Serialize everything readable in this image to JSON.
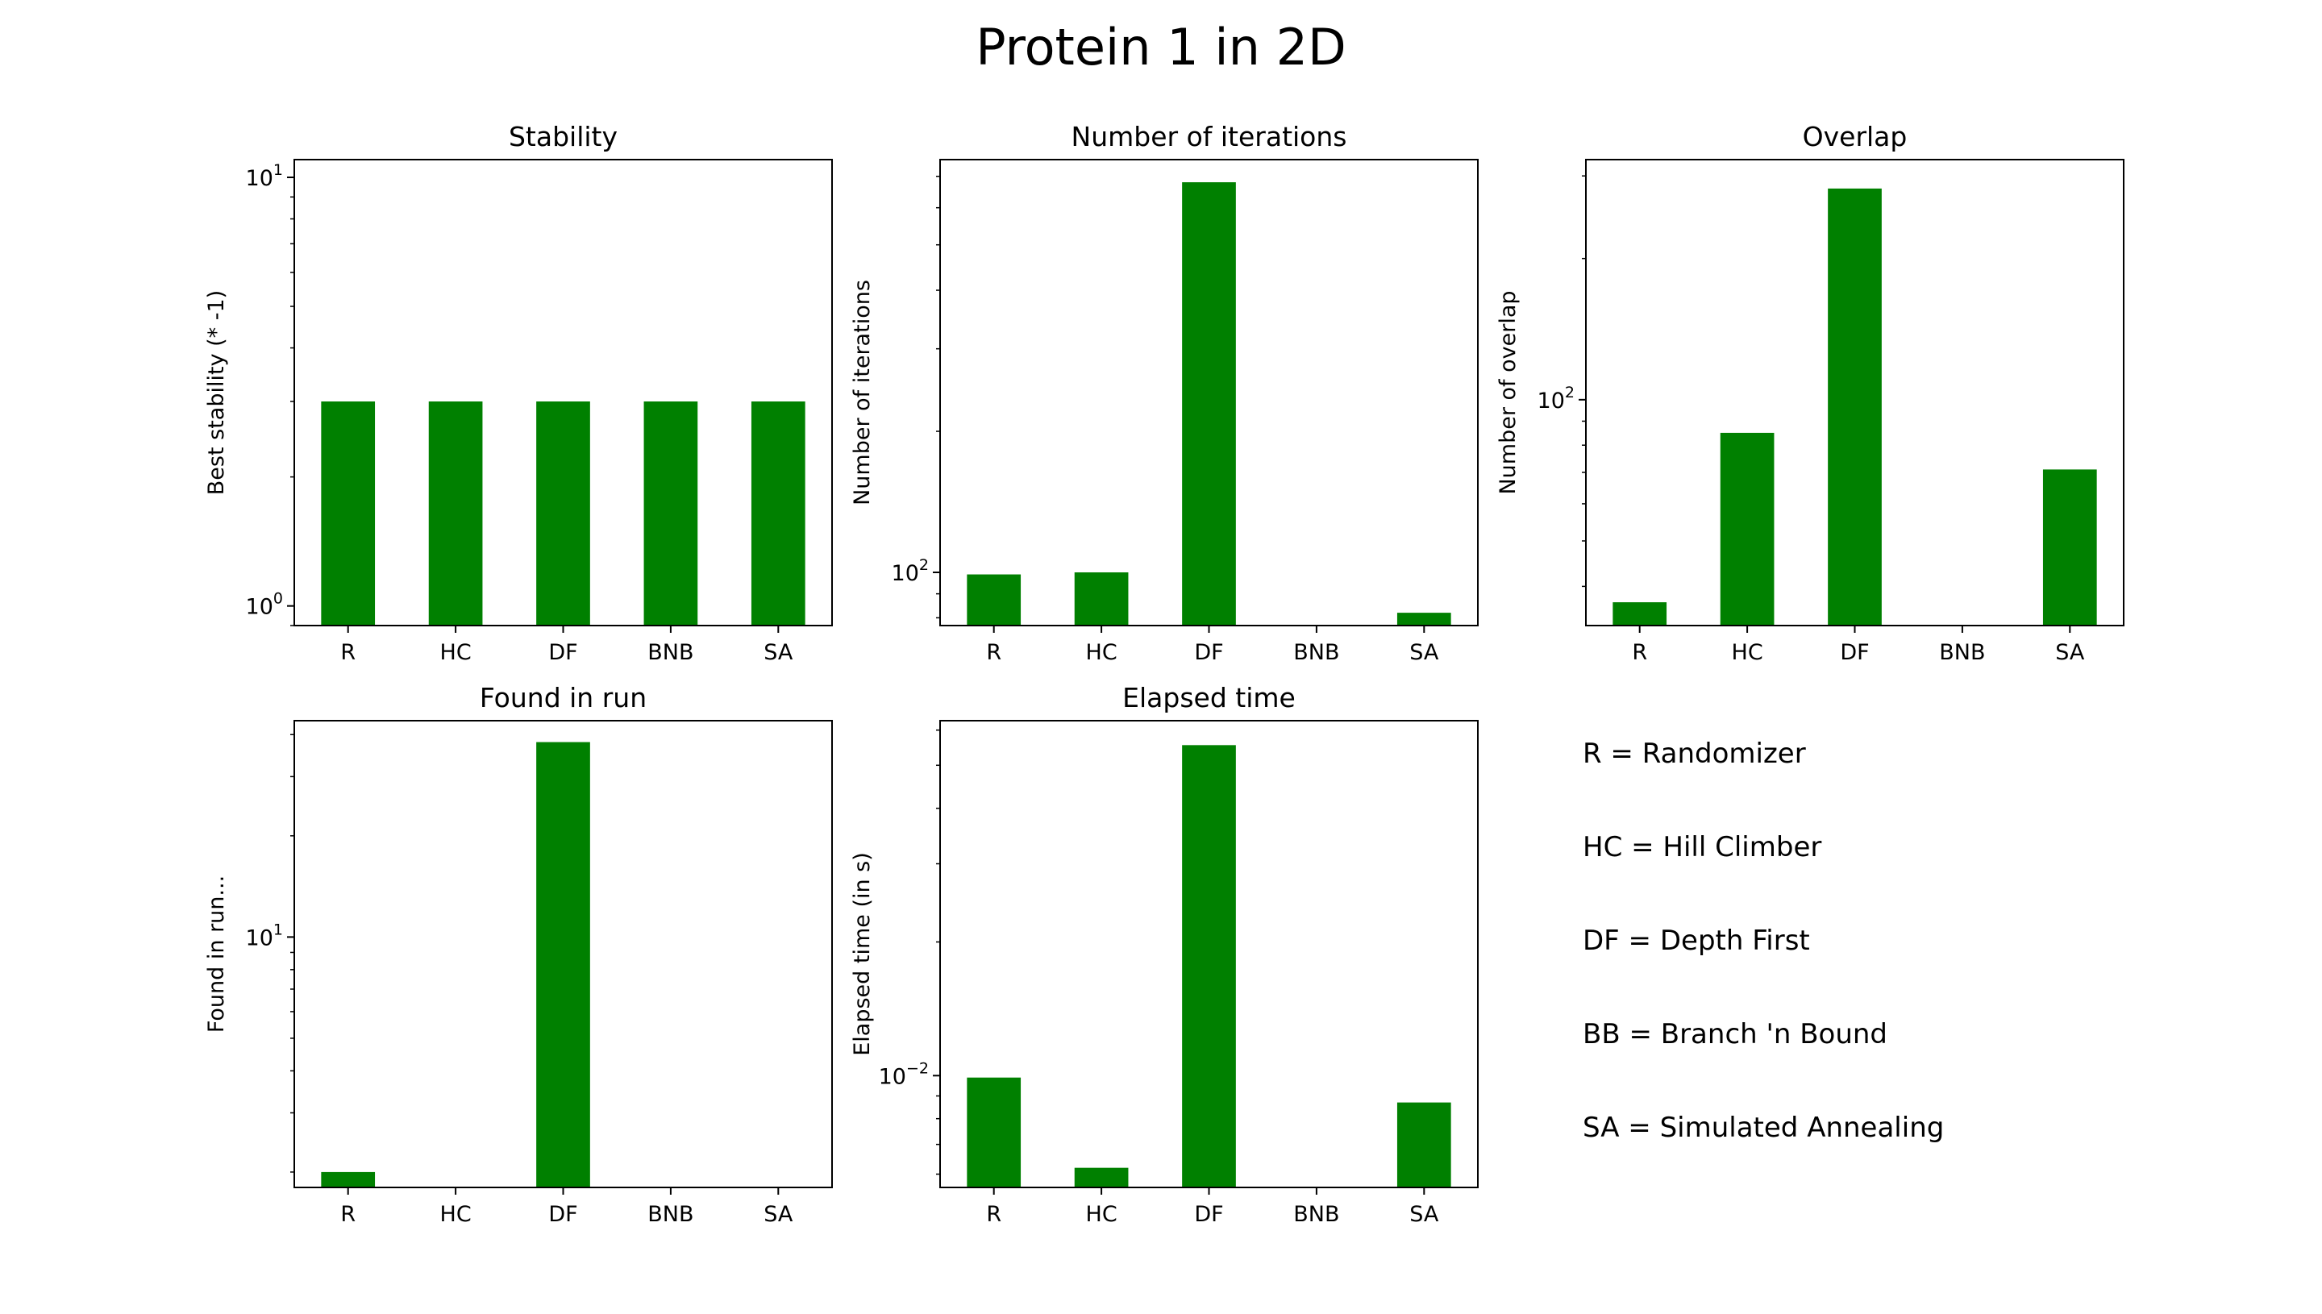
{
  "figure_title": "Protein 1 in 2D",
  "bar_color": "#008000",
  "legend": [
    "R = Randomizer",
    "HC = Hill Climber",
    "DF = Depth First",
    "BB = Branch 'n Bound",
    "SA = Simulated Annealing"
  ],
  "chart_data": [
    {
      "type": "bar",
      "title": "Stability",
      "ylabel": "Best stability (* -1)",
      "yscale": "log",
      "categories": [
        "R",
        "HC",
        "DF",
        "BNB",
        "SA"
      ],
      "values": [
        3,
        3,
        3,
        3,
        3
      ],
      "ylim": [
        0.9,
        11
      ],
      "ytick_labels": [
        {
          "value": 1,
          "base": "10",
          "exp": "0"
        },
        {
          "value": 10,
          "base": "10",
          "exp": "1"
        }
      ]
    },
    {
      "type": "bar",
      "title": "Number of iterations",
      "ylabel": "Number of iterations",
      "yscale": "log",
      "categories": [
        "R",
        "HC",
        "DF",
        "BNB",
        "SA"
      ],
      "values": [
        99,
        100,
        680,
        null,
        82
      ],
      "ylim": [
        77,
        760
      ],
      "ytick_labels": [
        {
          "value": 100,
          "base": "10",
          "exp": "2"
        }
      ]
    },
    {
      "type": "bar",
      "title": "Overlap",
      "ylabel": "Number  of overlap",
      "yscale": "log",
      "categories": [
        "R",
        "HC",
        "DF",
        "BNB",
        "SA"
      ],
      "values": [
        37,
        85,
        282,
        null,
        71
      ],
      "ylim": [
        33,
        325
      ],
      "ytick_labels": [
        {
          "value": 100,
          "base": "10",
          "exp": "2"
        }
      ]
    },
    {
      "type": "bar",
      "title": "Found in run",
      "ylabel": "Found in run...",
      "yscale": "log",
      "categories": [
        "R",
        "HC",
        "DF",
        "BNB",
        "SA"
      ],
      "values": [
        2,
        null,
        38,
        null,
        null
      ],
      "ylim": [
        1.8,
        44
      ],
      "ytick_labels": [
        {
          "value": 10,
          "base": "10",
          "exp": "1"
        }
      ]
    },
    {
      "type": "bar",
      "title": "Elapsed time",
      "ylabel": "Elapsed time (in s)",
      "yscale": "log",
      "categories": [
        "R",
        "HC",
        "DF",
        "BNB",
        "SA"
      ],
      "values": [
        0.0099,
        0.0062,
        0.0555,
        null,
        0.0087
      ],
      "ylim": [
        0.0056,
        0.063
      ],
      "ytick_labels": [
        {
          "value": 0.01,
          "base": "10",
          "exp": "−2"
        }
      ]
    }
  ]
}
